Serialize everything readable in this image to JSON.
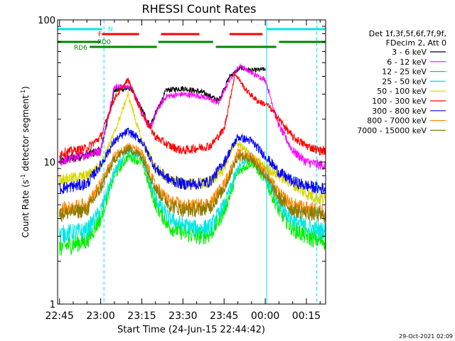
{
  "chart_data": {
    "type": "line",
    "title": "RHESSI Count Rates",
    "xlabel": "Start Time (24-Jun-15 22:44:42)",
    "ylabel_main": "Count Rate (s",
    "ylabel_sup1": "-1",
    "ylabel_mid": " detector segment",
    "ylabel_sup2": "-1",
    "ylabel_end": ")",
    "y_scale": "log",
    "ylim": [
      1,
      100
    ],
    "xlim_minutes": [
      -0.7,
      97
    ],
    "x_ticks": [
      {
        "label": "22:45",
        "min": 0
      },
      {
        "label": "23:00",
        "min": 15
      },
      {
        "label": "23:15",
        "min": 30
      },
      {
        "label": "23:30",
        "min": 45
      },
      {
        "label": "23:45",
        "min": 60
      },
      {
        "label": "00:00",
        "min": 75
      },
      {
        "label": "00:15",
        "min": 90
      }
    ],
    "y_ticks": [
      {
        "label": "1",
        "value": 1
      },
      {
        "label": "10",
        "value": 10
      },
      {
        "label": "100",
        "value": 100
      }
    ],
    "timestamp": "29-Oct-2021 02:09",
    "legend": {
      "header": [
        "Det 1f,3f,5f,6f,7f,9f,",
        "FDecim 2, Att 0"
      ],
      "entries": [
        {
          "label": "3 - 6 keV",
          "color": "#000000"
        },
        {
          "label": "6 - 12 keV",
          "color": "#ff00ff"
        },
        {
          "label": "12 - 25 keV",
          "color": "#00ee00"
        },
        {
          "label": "25 - 50 keV",
          "color": "#00e5e5"
        },
        {
          "label": "50 - 100 keV",
          "color": "#d6d600"
        },
        {
          "label": "100 - 300 keV",
          "color": "#ff0000"
        },
        {
          "label": "300 - 800 keV",
          "color": "#0000ff"
        },
        {
          "label": "800 - 7000 keV",
          "color": "#ff8800"
        },
        {
          "label": "7000 - 15000 keV",
          "color": "#8c7a00"
        }
      ]
    },
    "flags": [
      {
        "label": "N",
        "color": "#00e5e5",
        "segments": [
          [
            -0.7,
            15.5
          ],
          [
            75.5,
            97
          ]
        ]
      },
      {
        "label": "F",
        "color": "#ff0000",
        "segments": [
          [
            15.5,
            29
          ],
          [
            37,
            51
          ],
          [
            62,
            74
          ]
        ]
      },
      {
        "label": "RD0",
        "color": "#008800",
        "segments": [
          [
            -0.7,
            15
          ],
          [
            36,
            56
          ],
          [
            80,
            97
          ]
        ]
      },
      {
        "label": "RD6",
        "color": "#008800",
        "segments": [
          [
            11,
            35.5
          ],
          [
            57,
            79
          ]
        ]
      }
    ],
    "vertical_markers": [
      {
        "min": -0.7,
        "style": "solid",
        "color": "#00e5e5"
      },
      {
        "min": 16.2,
        "style": "dashed",
        "color": "#00e5e5"
      },
      {
        "min": 75.5,
        "style": "solid",
        "color": "#00e5e5"
      },
      {
        "min": 93.8,
        "style": "dashed",
        "color": "#00e5e5"
      }
    ],
    "series": [
      {
        "name": "3 - 6 keV",
        "color": "#000000",
        "t_start": 0,
        "t_end": 75,
        "x": [
          0,
          15,
          20,
          26,
          33,
          36,
          39,
          45,
          52,
          58,
          62,
          66,
          70,
          75
        ],
        "values": [
          10,
          12,
          32,
          33,
          18,
          24,
          32,
          33,
          31,
          27,
          40,
          46,
          44,
          45
        ]
      },
      {
        "name": "6 - 12 keV",
        "color": "#ff00ff",
        "t_start": 0,
        "t_end": 97,
        "x": [
          0,
          15,
          20,
          26,
          33,
          36,
          39,
          45,
          52,
          58,
          62,
          66,
          70,
          75,
          80,
          85,
          90,
          95,
          97
        ],
        "values": [
          10,
          12,
          34,
          34,
          17,
          24,
          29,
          30,
          29,
          26,
          38,
          48,
          42,
          38,
          18,
          12,
          10,
          9.5,
          9.5
        ]
      },
      {
        "name": "12 - 25 keV",
        "color": "#00ee00",
        "t_start": 0,
        "t_end": 97,
        "x": [
          0,
          10,
          15,
          20,
          25,
          30,
          35,
          40,
          45,
          50,
          55,
          60,
          65,
          70,
          75,
          80,
          85,
          90,
          95,
          97
        ],
        "values": [
          2.5,
          2.8,
          4,
          8,
          11,
          10,
          5,
          3.5,
          3.2,
          3,
          3.1,
          4.5,
          8.5,
          10,
          7.5,
          4.5,
          3.4,
          3,
          2.8,
          2.8
        ]
      },
      {
        "name": "25 - 50 keV",
        "color": "#00e5e5",
        "t_start": 0,
        "t_end": 97,
        "x": [
          0,
          10,
          15,
          20,
          25,
          30,
          35,
          40,
          45,
          50,
          55,
          60,
          65,
          70,
          75,
          80,
          85,
          90,
          95,
          97
        ],
        "values": [
          3.1,
          3.3,
          4.6,
          8.5,
          12,
          11,
          5.5,
          4,
          3.6,
          3.4,
          3.5,
          5,
          9,
          11,
          8,
          5,
          3.9,
          3.5,
          3.3,
          3.3
        ]
      },
      {
        "name": "50 - 100 keV",
        "color": "#d6d600",
        "t_start": 0,
        "t_end": 97,
        "x": [
          0,
          10,
          15,
          20,
          25,
          30,
          35,
          40,
          45,
          50,
          55,
          60,
          64,
          68,
          72,
          76,
          80,
          85,
          90,
          95,
          97
        ],
        "values": [
          7.5,
          8,
          9.5,
          16,
          30,
          14,
          9,
          7.5,
          7,
          7,
          7.2,
          9,
          14,
          12,
          10,
          9,
          8,
          7,
          6,
          5.5,
          5.5
        ]
      },
      {
        "name": "100 - 300 keV",
        "color": "#ff0000",
        "t_start": 0,
        "t_end": 97,
        "x": [
          0,
          10,
          15,
          20,
          25,
          30,
          35,
          40,
          45,
          50,
          55,
          60,
          64,
          68,
          72,
          76,
          80,
          85,
          90,
          95,
          97
        ],
        "values": [
          11.5,
          12.5,
          15,
          28,
          38,
          22,
          15,
          13,
          12,
          12.5,
          13,
          17,
          42,
          32,
          27,
          25,
          20,
          15,
          13,
          12,
          12
        ]
      },
      {
        "name": "300 - 800 keV",
        "color": "#0000ff",
        "t_start": 0,
        "t_end": 97,
        "x": [
          0,
          10,
          15,
          20,
          25,
          30,
          35,
          40,
          45,
          50,
          55,
          60,
          65,
          70,
          75,
          80,
          85,
          90,
          95,
          97
        ],
        "values": [
          6.5,
          7,
          9.5,
          14,
          16.5,
          14,
          9,
          7.5,
          7,
          7,
          7.3,
          10,
          15,
          14,
          11,
          8.5,
          7.3,
          6.8,
          6.5,
          6.5
        ]
      },
      {
        "name": "800 - 7000 keV",
        "color": "#ff8800",
        "t_start": 0,
        "t_end": 97,
        "x": [
          0,
          10,
          15,
          20,
          25,
          30,
          35,
          40,
          45,
          50,
          55,
          60,
          65,
          70,
          75,
          80,
          85,
          90,
          95,
          97
        ],
        "values": [
          4.6,
          5,
          7,
          11,
          13,
          11.5,
          6.8,
          5.3,
          4.9,
          4.9,
          5.1,
          7,
          11.5,
          11,
          8.5,
          6,
          5,
          4.7,
          4.5,
          4.5
        ]
      },
      {
        "name": "7000 - 15000 keV",
        "color": "#8c7a00",
        "t_start": 0,
        "t_end": 97,
        "x": [
          0,
          10,
          15,
          20,
          25,
          30,
          35,
          40,
          45,
          50,
          55,
          60,
          65,
          70,
          75,
          80,
          85,
          90,
          95,
          97
        ],
        "values": [
          4.3,
          4.6,
          6.5,
          10.5,
          12.5,
          11,
          6.5,
          5,
          4.6,
          4.6,
          4.8,
          6.5,
          11,
          10.5,
          8,
          5.6,
          4.6,
          4.4,
          4.2,
          4.2
        ]
      }
    ]
  }
}
